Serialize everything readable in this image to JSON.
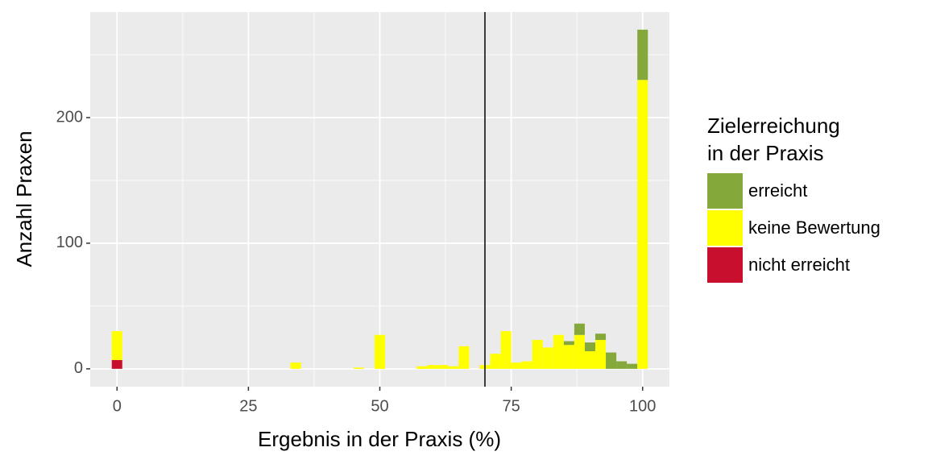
{
  "chart_data": {
    "type": "histogram",
    "xlabel": "Ergebnis in der Praxis (%)",
    "ylabel": "Anzahl Praxen",
    "bins": [
      -1,
      1,
      3,
      5,
      7,
      9,
      11,
      13,
      15,
      17,
      19,
      21,
      23,
      25,
      27,
      29,
      31,
      33,
      35,
      37,
      39,
      41,
      43,
      45,
      47,
      49,
      51,
      53,
      55,
      57,
      59,
      61,
      63,
      65,
      67,
      69,
      71,
      73,
      75,
      77,
      79,
      81,
      83,
      85,
      87,
      89,
      91,
      93,
      95,
      97,
      99,
      101
    ],
    "series": [
      {
        "name": "erreicht",
        "color": "#84A83A",
        "values": [
          0,
          0,
          0,
          0,
          0,
          0,
          0,
          0,
          0,
          0,
          0,
          0,
          0,
          0,
          0,
          0,
          0,
          0,
          0,
          0,
          0,
          0,
          0,
          0,
          0,
          0,
          0,
          0,
          0,
          0,
          0,
          0,
          0,
          0,
          0,
          0,
          0,
          0,
          0,
          0,
          0,
          0,
          0,
          3,
          9,
          7,
          5,
          13,
          6,
          4,
          40
        ]
      },
      {
        "name": "keine Bewertung",
        "color": "#FFFF00",
        "values": [
          23,
          0,
          0,
          0,
          0,
          0,
          0,
          0,
          0,
          0,
          0,
          0,
          0,
          0,
          0,
          0,
          0,
          5,
          0,
          0,
          0,
          0,
          0,
          1,
          0,
          27,
          0,
          0,
          0,
          2,
          3,
          3,
          2,
          18,
          0,
          3,
          12,
          30,
          5,
          6,
          23,
          17,
          27,
          19,
          27,
          14,
          23,
          0,
          0,
          0,
          230
        ]
      },
      {
        "name": "nicht erreicht",
        "color": "#C8102E",
        "values": [
          7,
          0,
          0,
          0,
          0,
          0,
          0,
          0,
          0,
          0,
          0,
          0,
          0,
          0,
          0,
          0,
          0,
          0,
          0,
          0,
          0,
          0,
          0,
          0,
          0,
          0,
          0,
          0,
          0,
          0,
          0,
          0,
          0,
          0,
          0,
          0,
          0,
          0,
          0,
          0,
          0,
          0,
          0,
          0,
          0,
          0,
          0,
          0,
          0,
          0,
          0
        ]
      }
    ],
    "legend_title": [
      "Zielerreichung",
      "in der Praxis"
    ],
    "vline": 70,
    "xlim": [
      -5.1,
      105.1
    ],
    "ylim": [
      -14.2,
      284
    ],
    "xticks": [
      0,
      25,
      50,
      75,
      100
    ],
    "yticks": [
      0,
      100,
      200
    ],
    "x_minor_grid": [
      12.5,
      37.5,
      62.5,
      87.5
    ],
    "y_minor_grid": [
      50,
      150,
      250
    ],
    "grid": true
  }
}
